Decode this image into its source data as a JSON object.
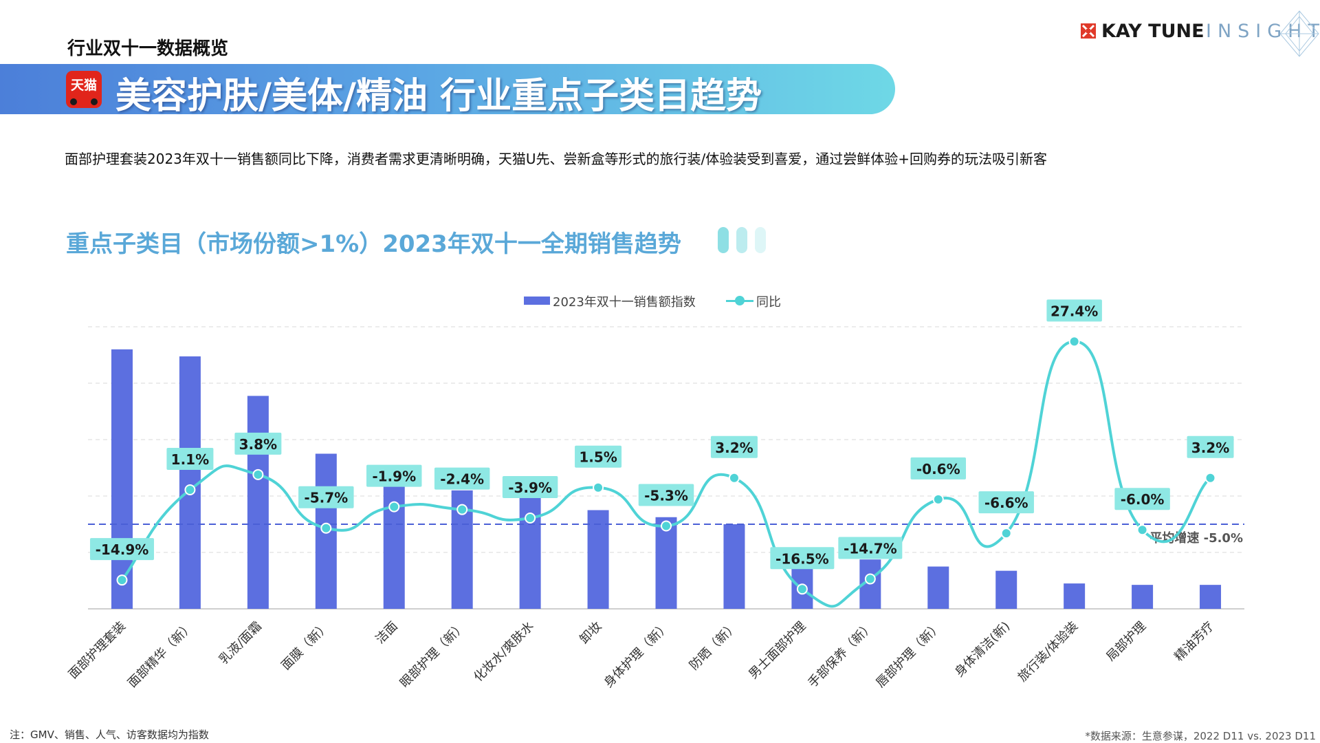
{
  "header": {
    "section_label": "行业双十一数据概览",
    "brand_name": "KAY TUNE",
    "brand_insights": "INSIGHTS",
    "banner_title": "美容护肤/美体/精油 行业重点子类目趋势",
    "tmall_logo_text": "天猫"
  },
  "summary_text": "面部护理套装2023年双十一销售额同比下降，消费者需求更清晰明确，天猫U先、尝新盒等形式的旅行装/体验装受到喜爱，通过尝鲜体验+回购券的玩法吸引新客",
  "chart_heading": "重点子类目（市场份额>1%）2023年双十一全期销售趋势",
  "footer": {
    "note": "注：GMV、销售、人气、访客数据均为指数",
    "source": "*数据来源：生意参谋，2022 D11 vs. 2023 D11"
  },
  "colors": {
    "bar": "#5c6fe0",
    "line": "#4fd3d6",
    "avg_line": "#4a5fd6",
    "label_bg": "#8ee8e4",
    "heading": "#5aa8d8"
  },
  "chart_data": {
    "type": "bar",
    "categories": [
      "面部护理套装",
      "面部精华（新）",
      "乳液/面霜",
      "面膜（新）",
      "洁面",
      "眼部护理（新）",
      "化妆水/爽肤水",
      "卸妆",
      "身体护理（新）",
      "防晒（新）",
      "男士面部护理",
      "手部保养（新）",
      "唇部护理（新）",
      "身体清洁(新)",
      "旅行装/体验装",
      "局部护理",
      "精油芳疗"
    ],
    "series": [
      {
        "name": "2023年双十一销售额指数",
        "type": "bar",
        "values": [
          92,
          89.5,
          75.5,
          55,
          45.5,
          42,
          39.5,
          35,
          32.5,
          30,
          19,
          17.5,
          15,
          13.5,
          9,
          8.5,
          8.5
        ]
      },
      {
        "name": "同比",
        "type": "line",
        "values": [
          -14.9,
          1.1,
          3.8,
          -5.7,
          -1.9,
          -2.4,
          -3.9,
          1.5,
          -5.3,
          3.2,
          -16.5,
          -14.7,
          -0.6,
          -6.6,
          27.4,
          -6.0,
          3.2
        ],
        "labels": [
          "-14.9%",
          "1.1%",
          "3.8%",
          "-5.7%",
          "-1.9%",
          "-2.4%",
          "-3.9%",
          "1.5%",
          "-5.3%",
          "3.2%",
          "-16.5%",
          "-14.7%",
          "-0.6%",
          "-6.6%",
          "27.4%",
          "-6.0%",
          "3.2%"
        ]
      }
    ],
    "average": {
      "label": "平均增速 -5.0%",
      "value": -5.0
    },
    "ylim_bar": [
      0,
      100
    ],
    "ylim_line": [
      -20,
      30
    ],
    "grid": true,
    "legend_position": "top-center"
  }
}
